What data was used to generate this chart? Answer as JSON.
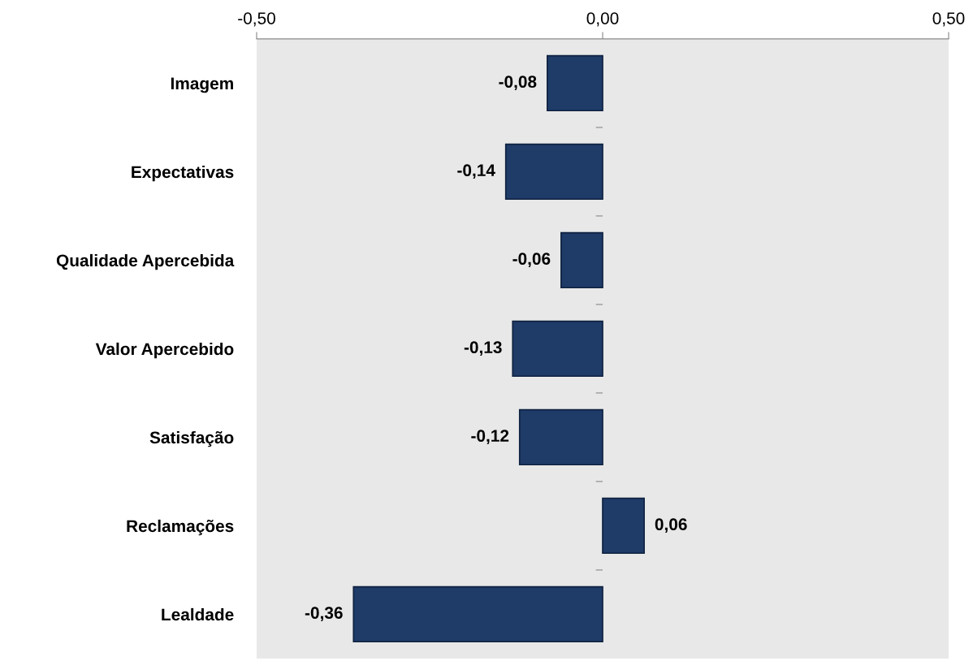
{
  "chart_data": {
    "type": "bar",
    "orientation": "horizontal",
    "categories": [
      "Imagem",
      "Expectativas",
      "Qualidade Apercebida",
      "Valor Apercebido",
      "Satisfação",
      "Reclamações",
      "Lealdade"
    ],
    "values": [
      -0.08,
      -0.14,
      -0.06,
      -0.13,
      -0.12,
      0.06,
      -0.36
    ],
    "value_labels": [
      "-0,08",
      "-0,14",
      "-0,06",
      "-0,13",
      "-0,12",
      "0,06",
      "-0,36"
    ],
    "color": "#1f3b68",
    "xlim": [
      -0.5,
      0.5
    ],
    "xticks": [
      {
        "value": -0.5,
        "label": "-0,50"
      },
      {
        "value": 0,
        "label": "0,00"
      },
      {
        "value": 0.5,
        "label": "0,50"
      }
    ],
    "grid": false,
    "legend": false
  }
}
